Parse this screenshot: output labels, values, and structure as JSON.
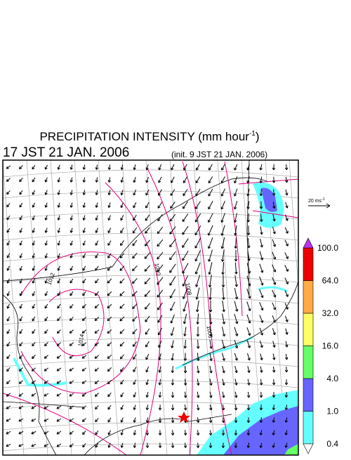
{
  "header": {
    "title": {
      "text": "PRECIPITATION INTENSITY (mm hour",
      "superscript": "-1",
      "close": ")"
    },
    "valid_time": "17 JST 21 JAN. 2006",
    "init_time": "(init. 9 JST 21 JAN. 2006)"
  },
  "vector_scale": {
    "text": "20 ms",
    "superscript": "-1"
  },
  "colorbar": {
    "labels": [
      "0.4",
      "1.0",
      "4.0",
      "16.0",
      "32.0",
      "64.0",
      "100.0"
    ],
    "colors": [
      "#66ffff",
      "#6666ff",
      "#66ff66",
      "#ffff66",
      "#ffaa44",
      "#ee0000"
    ],
    "under_color": "#ffffff",
    "over_color": "#bb33ee"
  },
  "isobar_labels": [
    "1012",
    "1010",
    "1008",
    "1006",
    "1014"
  ]
}
